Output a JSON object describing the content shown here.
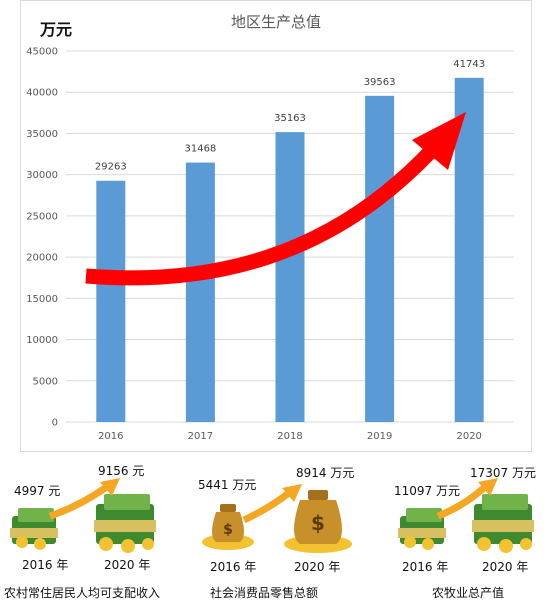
{
  "chart_data": {
    "type": "bar",
    "title": "地区生产总值",
    "unit": "万元",
    "categories": [
      "2016",
      "2017",
      "2018",
      "2019",
      "2020"
    ],
    "values": [
      29263,
      31468,
      35163,
      39563,
      41743
    ],
    "ylim": [
      0,
      45000
    ],
    "yticks": [
      0,
      5000,
      10000,
      15000,
      20000,
      25000,
      30000,
      35000,
      40000,
      45000
    ],
    "grid": true,
    "bar_color": "#5b9bd5",
    "trend_arrow_color": "#ff0000"
  },
  "panels": [
    {
      "from_value": "4997 元",
      "to_value": "9156 元",
      "from_year": "2016 年",
      "to_year": "2020 年",
      "caption": "农村常住居民人均可支配收入",
      "icon": "money-stack-icon"
    },
    {
      "from_value": "5441 万元",
      "to_value": "8914 万元",
      "from_year": "2016 年",
      "to_year": "2020 年",
      "caption": "社会消费品零售总额",
      "icon": "money-bag-icon"
    },
    {
      "from_value": "11097 万元",
      "to_value": "17307 万元",
      "from_year": "2016 年",
      "to_year": "2020 年",
      "caption": "农牧业总产值",
      "icon": "money-stack-icon"
    }
  ],
  "colors": {
    "growth_arrow": "#f5a623",
    "money_green": "#3f8a2e",
    "coin_gold": "#f2c230"
  }
}
